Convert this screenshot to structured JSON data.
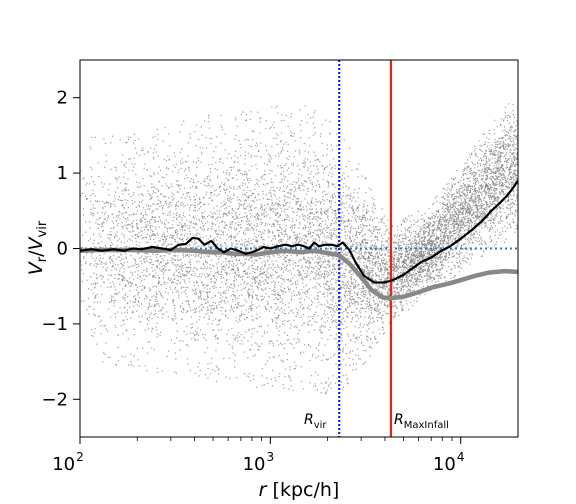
{
  "chart_data": {
    "type": "scatter",
    "title": "",
    "xlabel_main": "r",
    "xlabel_units": "[kpc/h]",
    "ylabel_main": "V",
    "ylabel_num_sub": "r",
    "ylabel_den_sub": "vir",
    "xscale": "log",
    "xlim": [
      100,
      20000
    ],
    "ylim": [
      -2.5,
      2.5
    ],
    "x_ticks": [
      100,
      1000,
      10000
    ],
    "x_tick_labels": [
      {
        "base": "10",
        "exp": "2"
      },
      {
        "base": "10",
        "exp": "3"
      },
      {
        "base": "10",
        "exp": "4"
      }
    ],
    "y_ticks": [
      -2,
      -1,
      0,
      1,
      2
    ],
    "y_tick_labels": [
      "−2",
      "−1",
      "0",
      "1",
      "2"
    ],
    "grid": false,
    "reference_lines": {
      "zero_line": {
        "y": 0,
        "style": "dotted",
        "color": "#2b7bba"
      },
      "r_vir": {
        "x": 2300,
        "style": "dotted",
        "color": "#1f1fd6",
        "label_main": "R",
        "label_sub": "vir"
      },
      "r_maxinfall": {
        "x": 4300,
        "style": "solid",
        "color": "#e8231b",
        "label_main": "R",
        "label_sub": "MaxInfall"
      }
    },
    "series": [
      {
        "kind": "scatter_cloud",
        "color": "#7f7f7f",
        "approx_points": 9000,
        "envelope": [
          {
            "x": 100,
            "lo": -1.45,
            "hi": 1.45
          },
          {
            "x": 200,
            "lo": -1.6,
            "hi": 1.6
          },
          {
            "x": 400,
            "lo": -1.75,
            "hi": 1.75
          },
          {
            "x": 800,
            "lo": -1.85,
            "hi": 1.85
          },
          {
            "x": 1500,
            "lo": -1.9,
            "hi": 1.95
          },
          {
            "x": 2300,
            "lo": -1.95,
            "hi": 1.6
          },
          {
            "x": 3200,
            "lo": -1.5,
            "hi": 1.0
          },
          {
            "x": 4300,
            "lo": -1.0,
            "hi": 0.3
          },
          {
            "x": 7000,
            "lo": -0.6,
            "hi": 0.6
          },
          {
            "x": 12000,
            "lo": -0.2,
            "hi": 1.4
          },
          {
            "x": 20000,
            "lo": 0.2,
            "hi": 2.1
          }
        ]
      },
      {
        "kind": "line",
        "color": "#888888",
        "width": 4.5,
        "points": [
          [
            100,
            -0.03
          ],
          [
            130,
            -0.02
          ],
          [
            180,
            -0.02
          ],
          [
            250,
            -0.03
          ],
          [
            320,
            -0.02
          ],
          [
            400,
            -0.03
          ],
          [
            480,
            -0.05
          ],
          [
            550,
            -0.05
          ],
          [
            650,
            -0.07
          ],
          [
            720,
            -0.07
          ],
          [
            850,
            -0.08
          ],
          [
            1000,
            -0.05
          ],
          [
            1200,
            -0.03
          ],
          [
            1450,
            -0.05
          ],
          [
            1700,
            -0.03
          ],
          [
            2000,
            -0.06
          ],
          [
            2300,
            -0.09
          ],
          [
            2600,
            -0.2
          ],
          [
            3000,
            -0.38
          ],
          [
            3400,
            -0.55
          ],
          [
            3900,
            -0.65
          ],
          [
            4300,
            -0.66
          ],
          [
            5000,
            -0.64
          ],
          [
            6000,
            -0.58
          ],
          [
            7000,
            -0.52
          ],
          [
            8500,
            -0.47
          ],
          [
            10000,
            -0.42
          ],
          [
            12000,
            -0.36
          ],
          [
            14000,
            -0.32
          ],
          [
            17000,
            -0.3
          ],
          [
            20000,
            -0.31
          ]
        ]
      },
      {
        "kind": "line",
        "color": "#000000",
        "width": 2.2,
        "points": [
          [
            100,
            -0.03
          ],
          [
            115,
            -0.01
          ],
          [
            130,
            -0.03
          ],
          [
            150,
            -0.01
          ],
          [
            170,
            -0.03
          ],
          [
            190,
            0.0
          ],
          [
            210,
            -0.01
          ],
          [
            240,
            0.02
          ],
          [
            270,
            0.0
          ],
          [
            300,
            -0.02
          ],
          [
            330,
            0.05
          ],
          [
            360,
            0.06
          ],
          [
            390,
            0.14
          ],
          [
            420,
            0.13
          ],
          [
            450,
            0.05
          ],
          [
            490,
            0.1
          ],
          [
            530,
            0.0
          ],
          [
            570,
            -0.05
          ],
          [
            620,
            0.0
          ],
          [
            680,
            -0.03
          ],
          [
            740,
            -0.07
          ],
          [
            800,
            -0.05
          ],
          [
            860,
            -0.02
          ],
          [
            920,
            0.02
          ],
          [
            1000,
            0.0
          ],
          [
            1100,
            0.03
          ],
          [
            1200,
            0.05
          ],
          [
            1300,
            0.03
          ],
          [
            1400,
            0.05
          ],
          [
            1500,
            0.03
          ],
          [
            1600,
            0.0
          ],
          [
            1700,
            0.08
          ],
          [
            1800,
            0.03
          ],
          [
            1950,
            0.05
          ],
          [
            2100,
            0.05
          ],
          [
            2250,
            0.03
          ],
          [
            2400,
            0.08
          ],
          [
            2600,
            -0.02
          ],
          [
            2800,
            -0.18
          ],
          [
            3100,
            -0.36
          ],
          [
            3500,
            -0.45
          ],
          [
            4000,
            -0.45
          ],
          [
            4400,
            -0.42
          ],
          [
            5000,
            -0.35
          ],
          [
            5600,
            -0.26
          ],
          [
            6200,
            -0.18
          ],
          [
            7000,
            -0.12
          ],
          [
            7800,
            -0.04
          ],
          [
            8800,
            0.03
          ],
          [
            10000,
            0.13
          ],
          [
            11500,
            0.25
          ],
          [
            13000,
            0.37
          ],
          [
            14500,
            0.5
          ],
          [
            16000,
            0.6
          ],
          [
            17500,
            0.7
          ],
          [
            18800,
            0.8
          ],
          [
            20000,
            0.9
          ]
        ]
      }
    ]
  }
}
